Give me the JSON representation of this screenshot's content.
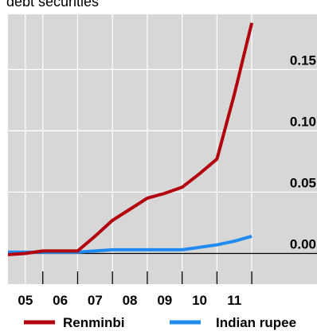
{
  "chart_data": {
    "type": "line",
    "title": "debt securities",
    "xlabel": "",
    "ylabel": "",
    "x_tick_labels": [
      "05",
      "06",
      "07",
      "08",
      "09",
      "10",
      "11"
    ],
    "y_tick_labels": [
      "0.00",
      "0.05",
      "0.10",
      "0.15"
    ],
    "y_ticks": [
      0.0,
      0.05,
      0.1,
      0.15
    ],
    "ylim": [
      -0.025,
      0.195
    ],
    "xlim": [
      2004.5,
      2012.0
    ],
    "grid": true,
    "legend_position": "bottom",
    "series": [
      {
        "name": "Renminbi",
        "color": "#b2000d",
        "x": [
          2004.5,
          2005.0,
          2005.5,
          2006.0,
          2006.5,
          2007.0,
          2007.5,
          2008.0,
          2008.5,
          2009.0,
          2009.5,
          2010.0,
          2010.5,
          2011.0,
          2011.5
        ],
        "values": [
          -0.001,
          0.0,
          0.002,
          0.002,
          0.002,
          0.014,
          0.027,
          0.036,
          0.045,
          0.049,
          0.054,
          0.065,
          0.077,
          0.13,
          0.188
        ]
      },
      {
        "name": "Indian rupee",
        "color": "#1f8af0",
        "x": [
          2004.5,
          2005.0,
          2005.5,
          2006.0,
          2006.5,
          2007.0,
          2007.5,
          2008.0,
          2008.5,
          2009.0,
          2009.5,
          2010.0,
          2010.5,
          2011.0,
          2011.5
        ],
        "values": [
          0.001,
          0.001,
          0.001,
          0.001,
          0.001,
          0.002,
          0.003,
          0.003,
          0.003,
          0.003,
          0.003,
          0.005,
          0.007,
          0.01,
          0.014
        ]
      }
    ]
  }
}
